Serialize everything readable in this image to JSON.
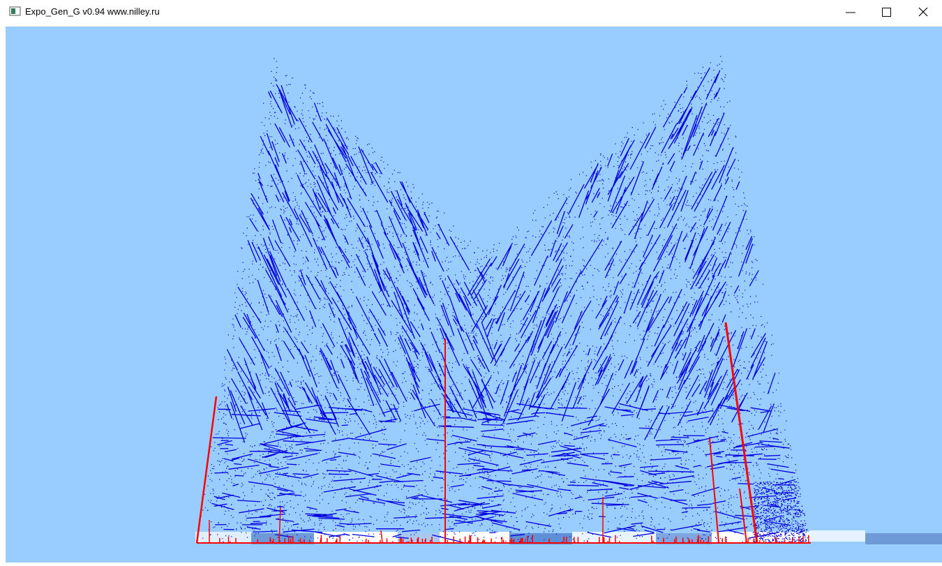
{
  "window": {
    "title": "Expo_Gen_G v0.94 www.nilley.ru"
  }
}
